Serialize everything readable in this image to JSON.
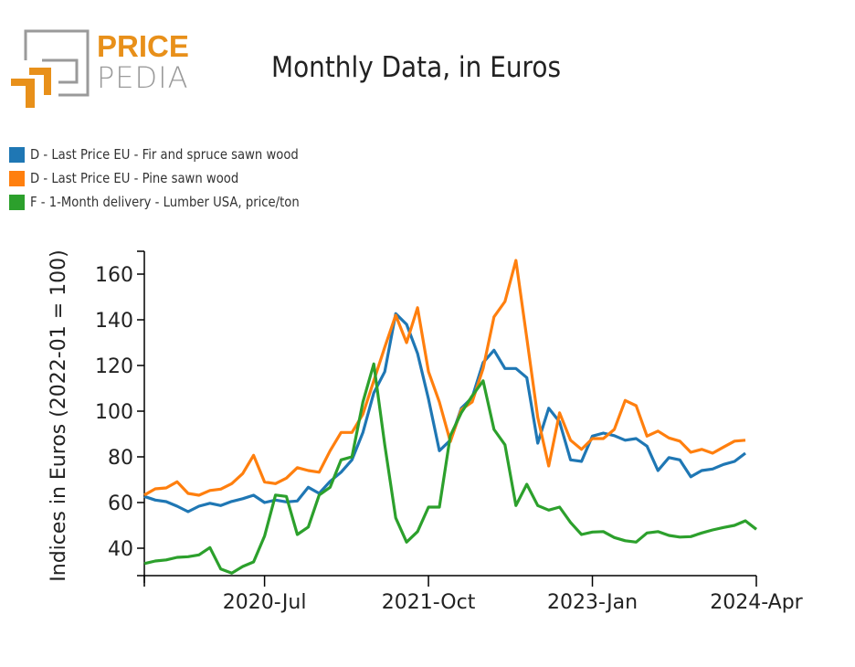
{
  "logo": {
    "word1": "PRICE",
    "word2": "PEDIA",
    "accent": "#e8901a",
    "gray": "#9a9a9a"
  },
  "chart_data": {
    "type": "line",
    "title": "Monthly Data, in Euros",
    "xlabel": "",
    "ylabel": "Indices in Euros (2022-01 = 100)",
    "x_start": "2019-Aug",
    "x_end": "2024-Apr",
    "x_ticks": [
      {
        "label": "2020-Jul",
        "index": 11
      },
      {
        "label": "2021-Oct",
        "index": 26
      },
      {
        "label": "2023-Jan",
        "index": 41
      },
      {
        "label": "2024-Apr",
        "index": 56
      }
    ],
    "y_ticks": [
      40,
      60,
      80,
      100,
      120,
      140,
      160
    ],
    "ylim": [
      28,
      170
    ],
    "grid": false,
    "legend_position": "top-left",
    "series": [
      {
        "name": "D - Last Price EU - Fir and spruce sawn wood",
        "color": "#1f77b4",
        "values": [
          62.7,
          61.1,
          60.4,
          58.4,
          56,
          58.4,
          59.7,
          58.7,
          60.5,
          61.7,
          63.2,
          60,
          61.1,
          60.3,
          60.7,
          66.7,
          64,
          69.3,
          73.3,
          78.7,
          90.7,
          108,
          117.3,
          142.7,
          138,
          125.3,
          105.3,
          82.7,
          87.3,
          101.3,
          106,
          121.3,
          126.7,
          118.7,
          118.7,
          114.7,
          86,
          101.3,
          95.3,
          78.7,
          78,
          89.1,
          90.4,
          89.3,
          87.3,
          88,
          84.7,
          74,
          79.7,
          78.7,
          71.3,
          74,
          74.7,
          76.7,
          78,
          81.6
        ]
      },
      {
        "name": "D - Last Price EU - Pine sawn wood",
        "color": "#ff7f0e",
        "values": [
          63.3,
          66,
          66.4,
          69.1,
          64,
          63.2,
          65.3,
          65.9,
          68.3,
          72.7,
          80.7,
          69,
          68.3,
          70.7,
          75.3,
          74,
          73.3,
          82.7,
          90.7,
          90.7,
          98.7,
          113.3,
          128,
          142,
          130,
          145.3,
          117.3,
          104,
          86.7,
          100.7,
          104,
          118.7,
          141.3,
          148,
          166,
          132,
          97.3,
          76,
          99.3,
          87.3,
          83.3,
          88,
          88,
          92,
          104.7,
          102.4,
          89.1,
          91.3,
          88.3,
          86.9,
          82,
          83.3,
          81.6,
          84.3,
          86.9,
          87.3
        ]
      },
      {
        "name": "F - 1-Month delivery - Lumber USA, price/ton",
        "color": "#2ca02c",
        "values": [
          33.3,
          34.4,
          34.9,
          36,
          36.3,
          37.1,
          40.3,
          30.9,
          29.1,
          32,
          34,
          45.3,
          63.3,
          62.7,
          46,
          49.3,
          63.3,
          66.7,
          78.7,
          80,
          104,
          120.7,
          85.3,
          53.3,
          42.7,
          47.3,
          58,
          58,
          89.3,
          99.3,
          106.7,
          113.3,
          92,
          85.3,
          58.7,
          68,
          58.7,
          56.7,
          58,
          51.3,
          46,
          47.1,
          47.3,
          44.7,
          43.3,
          42.7,
          46.7,
          47.3,
          45.6,
          44.9,
          45.1,
          46.7,
          48,
          49.1,
          50,
          52,
          48.3
        ]
      }
    ]
  }
}
